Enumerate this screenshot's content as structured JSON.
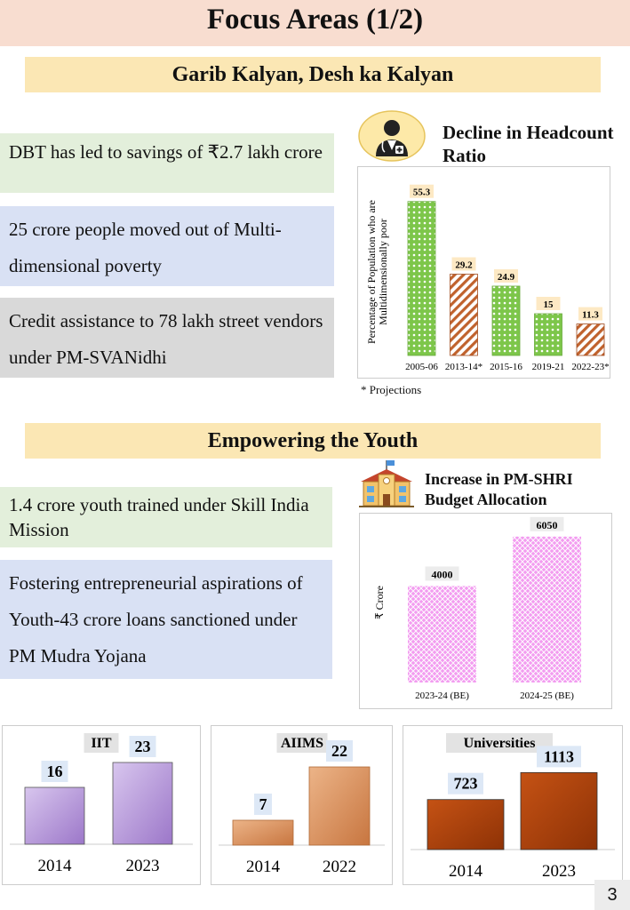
{
  "page": {
    "title": "Focus Areas (1/2)",
    "page_number": "3"
  },
  "section1": {
    "heading": "Garib Kalyan, Desh ka Kalyan",
    "points": [
      "DBT has led to savings of ₹2.7 lakh crore",
      "25 crore people moved out of Multi-dimensional poverty",
      "Credit assistance to 78 lakh street vendors under PM-SVANidhi"
    ]
  },
  "section2": {
    "heading": "Empowering the Youth",
    "points": [
      "1.4 crore youth trained under Skill India Mission",
      "Fostering entrepreneurial aspirations of Youth-43 crore loans sanctioned under PM Mudra Yojana"
    ]
  },
  "chart_data": [
    {
      "type": "bar",
      "title": "Decline in Headcount Ratio",
      "ylabel": "Percentage of Population who are Multidimensionally poor",
      "categories": [
        "2005-06",
        "2013-14*",
        "2015-16",
        "2019-21",
        "2022-23*"
      ],
      "values": [
        55.3,
        29.2,
        24.9,
        15,
        11.3
      ],
      "projected": [
        false,
        true,
        false,
        false,
        true
      ],
      "footnote": "* Projections",
      "colors": {
        "actual": "#7dc64a",
        "projection": "#c0622d"
      },
      "ylim": [
        0,
        60
      ]
    },
    {
      "type": "bar",
      "title": "Increase in PM-SHRI Budget Allocation",
      "ylabel": "₹ Crore",
      "categories": [
        "2023-24 (BE)",
        "2024-25 (BE)"
      ],
      "values": [
        4000,
        6050
      ],
      "colors": {
        "bar": "#f39cf0"
      },
      "ylim": [
        0,
        7000
      ]
    },
    {
      "type": "bar",
      "title": "IIT",
      "categories": [
        "2014",
        "2023"
      ],
      "values": [
        16,
        23
      ],
      "colors": {
        "bar": "#b9a0d8"
      },
      "ylim": [
        0,
        30
      ]
    },
    {
      "type": "bar",
      "title": "AIIMS",
      "categories": [
        "2014",
        "2022"
      ],
      "values": [
        7,
        22
      ],
      "colors": {
        "bar": "#d48c5a"
      },
      "ylim": [
        0,
        30
      ]
    },
    {
      "type": "bar",
      "title": "Universities",
      "categories": [
        "2014",
        "2023"
      ],
      "values": [
        723,
        1113
      ],
      "colors": {
        "bar": "#b34a0e"
      },
      "ylim": [
        0,
        1400
      ]
    }
  ],
  "icons": {
    "chart1_icon": "doctor-icon",
    "chart2_icon": "school-building-icon"
  }
}
